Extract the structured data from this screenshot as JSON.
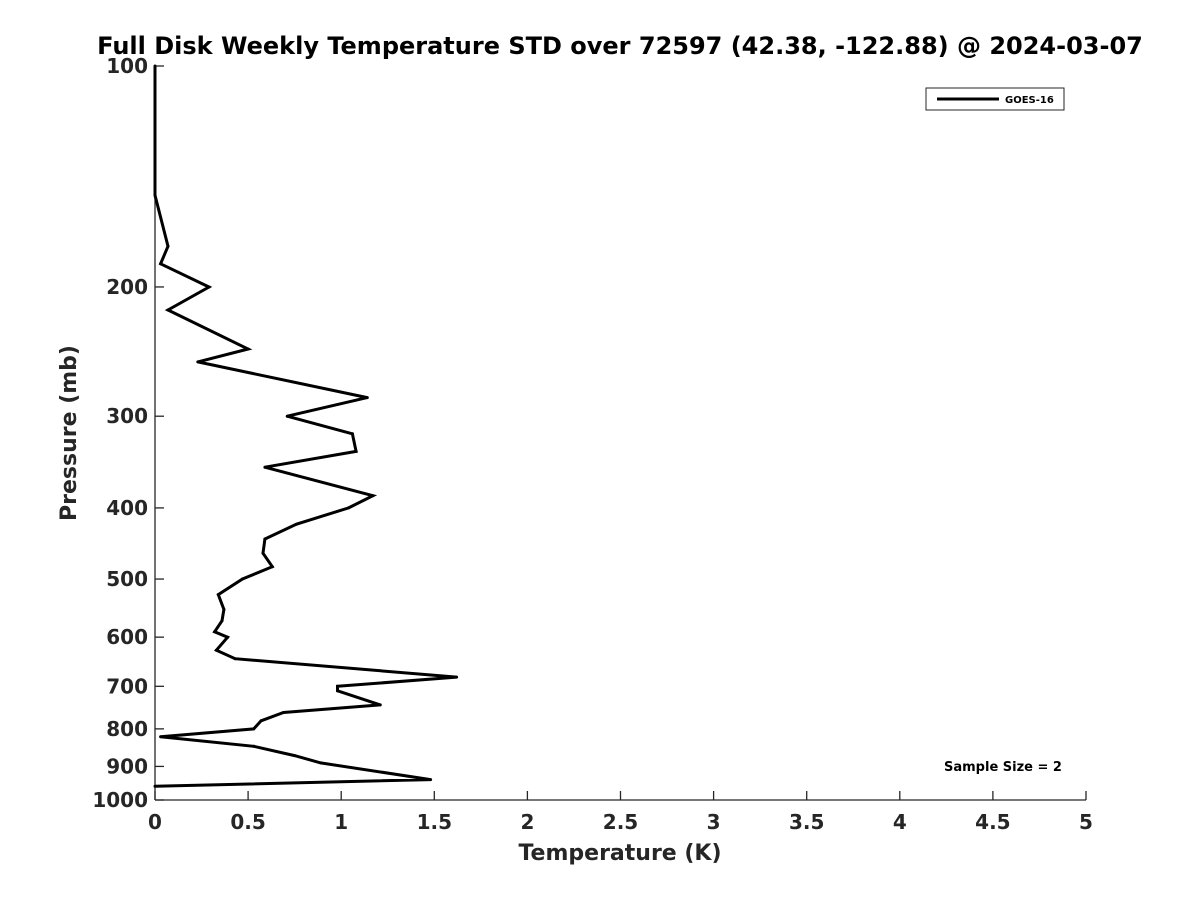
{
  "chart_data": {
    "type": "line",
    "title": "Full Disk Weekly Temperature STD over 72597 (42.38, -122.88) @ 2024-03-07",
    "xlabel": "Temperature (K)",
    "ylabel": "Pressure (mb)",
    "xlim": [
      0,
      5
    ],
    "ylim": [
      100,
      1000
    ],
    "yscale": "log",
    "y_reversed": true,
    "x_ticks": [
      "0",
      "0.5",
      "1",
      "1.5",
      "2",
      "2.5",
      "3",
      "3.5",
      "4",
      "4.5",
      "5"
    ],
    "x_tick_values": [
      0,
      0.5,
      1,
      1.5,
      2,
      2.5,
      3,
      3.5,
      4,
      4.5,
      5
    ],
    "y_ticks": [
      "100",
      "200",
      "300",
      "400",
      "500",
      "600",
      "700",
      "800",
      "900",
      "1000"
    ],
    "y_tick_values": [
      100,
      200,
      300,
      400,
      500,
      600,
      700,
      800,
      900,
      1000
    ],
    "grid": false,
    "legend_position": "top-right",
    "series": [
      {
        "name": "GOES-16",
        "color": "#000000",
        "points": [
          {
            "x": 0.0,
            "y": 100
          },
          {
            "x": 0.0,
            "y": 150
          },
          {
            "x": 0.07,
            "y": 176
          },
          {
            "x": 0.03,
            "y": 186
          },
          {
            "x": 0.29,
            "y": 200
          },
          {
            "x": 0.07,
            "y": 215
          },
          {
            "x": 0.5,
            "y": 243
          },
          {
            "x": 0.23,
            "y": 253
          },
          {
            "x": 1.14,
            "y": 283
          },
          {
            "x": 0.71,
            "y": 300
          },
          {
            "x": 1.06,
            "y": 317
          },
          {
            "x": 1.08,
            "y": 335
          },
          {
            "x": 0.59,
            "y": 352
          },
          {
            "x": 1.17,
            "y": 385
          },
          {
            "x": 1.04,
            "y": 400
          },
          {
            "x": 0.76,
            "y": 421
          },
          {
            "x": 0.59,
            "y": 441
          },
          {
            "x": 0.58,
            "y": 461
          },
          {
            "x": 0.63,
            "y": 481
          },
          {
            "x": 0.47,
            "y": 500
          },
          {
            "x": 0.34,
            "y": 525
          },
          {
            "x": 0.37,
            "y": 550
          },
          {
            "x": 0.36,
            "y": 570
          },
          {
            "x": 0.32,
            "y": 590
          },
          {
            "x": 0.39,
            "y": 600
          },
          {
            "x": 0.33,
            "y": 625
          },
          {
            "x": 0.43,
            "y": 642
          },
          {
            "x": 1.62,
            "y": 680
          },
          {
            "x": 0.98,
            "y": 700
          },
          {
            "x": 0.98,
            "y": 710
          },
          {
            "x": 1.21,
            "y": 742
          },
          {
            "x": 0.69,
            "y": 760
          },
          {
            "x": 0.57,
            "y": 780
          },
          {
            "x": 0.53,
            "y": 800
          },
          {
            "x": 0.03,
            "y": 820
          },
          {
            "x": 0.53,
            "y": 845
          },
          {
            "x": 0.75,
            "y": 870
          },
          {
            "x": 0.89,
            "y": 890
          },
          {
            "x": 1.48,
            "y": 938
          },
          {
            "x": 0.0,
            "y": 958
          }
        ]
      }
    ],
    "annotations": [
      {
        "text": "Sample Size = 2",
        "position": "bottom-right"
      }
    ]
  }
}
